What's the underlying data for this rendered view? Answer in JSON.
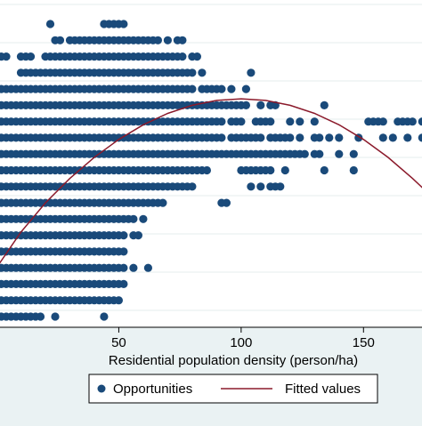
{
  "chart_data": {
    "type": "scatter",
    "title": "",
    "xlabel": "Residential population density (person/ha)",
    "ylabel": "",
    "xlim": [
      0,
      175
    ],
    "x_ticks": [
      50,
      100,
      150
    ],
    "grid": true,
    "legend_position": "bottom",
    "colors": {
      "background": "#eaf2f3",
      "plot_background": "#ffffff",
      "points": "#1a4a7a",
      "fitted_line": "#8b1a2b",
      "grid": "#e6ecee",
      "axis": "#000000"
    },
    "series": [
      {
        "name": "Opportunities",
        "kind": "points",
        "rows": [
          {
            "y": 18,
            "x": [
              22,
              44,
              46,
              48,
              50,
              52
            ]
          },
          {
            "y": 17,
            "x": [
              24,
              26,
              30,
              32,
              34,
              36,
              38,
              40,
              42,
              44,
              46,
              48,
              50,
              52,
              54,
              56,
              58,
              60,
              62,
              64,
              66,
              70,
              74,
              76
            ]
          },
          {
            "y": 16,
            "x": [
              2,
              4,
              10,
              12,
              14,
              20,
              22,
              24,
              26,
              28,
              30,
              32,
              34,
              36,
              38,
              40,
              42,
              44,
              46,
              48,
              50,
              52,
              54,
              56,
              58,
              60,
              62,
              64,
              66,
              68,
              70,
              72,
              74,
              76,
              80,
              82
            ]
          },
          {
            "y": 15,
            "x": [
              10,
              12,
              14,
              16,
              18,
              20,
              22,
              24,
              26,
              28,
              30,
              32,
              34,
              36,
              38,
              40,
              42,
              44,
              46,
              48,
              50,
              52,
              54,
              56,
              58,
              60,
              62,
              64,
              66,
              68,
              70,
              72,
              74,
              76,
              78,
              80,
              84,
              104
            ]
          },
          {
            "y": 14,
            "x": [
              2,
              4,
              6,
              8,
              10,
              12,
              14,
              16,
              18,
              20,
              22,
              24,
              26,
              28,
              30,
              32,
              34,
              36,
              38,
              40,
              42,
              44,
              46,
              48,
              50,
              52,
              54,
              56,
              58,
              60,
              62,
              64,
              66,
              68,
              70,
              72,
              74,
              76,
              78,
              80,
              84,
              86,
              88,
              90,
              92,
              96,
              102
            ]
          },
          {
            "y": 13,
            "x": [
              2,
              4,
              6,
              8,
              10,
              12,
              14,
              16,
              18,
              20,
              22,
              24,
              26,
              28,
              30,
              32,
              34,
              36,
              38,
              40,
              42,
              44,
              46,
              48,
              50,
              52,
              54,
              56,
              58,
              60,
              62,
              64,
              66,
              68,
              70,
              72,
              74,
              76,
              78,
              80,
              82,
              84,
              86,
              88,
              90,
              92,
              94,
              96,
              98,
              100,
              102,
              108,
              112,
              114,
              134
            ]
          },
          {
            "y": 12,
            "x": [
              2,
              4,
              6,
              8,
              10,
              12,
              14,
              16,
              18,
              20,
              22,
              24,
              26,
              28,
              30,
              32,
              34,
              36,
              38,
              40,
              42,
              44,
              46,
              48,
              50,
              52,
              54,
              56,
              58,
              60,
              62,
              64,
              66,
              68,
              70,
              72,
              74,
              76,
              78,
              80,
              82,
              84,
              86,
              88,
              90,
              92,
              96,
              98,
              100,
              106,
              108,
              110,
              112,
              120,
              124,
              130,
              152,
              154,
              156,
              158,
              164,
              166,
              168,
              170,
              174
            ]
          },
          {
            "y": 11,
            "x": [
              2,
              4,
              6,
              8,
              10,
              12,
              14,
              16,
              18,
              20,
              22,
              24,
              26,
              28,
              30,
              32,
              34,
              36,
              38,
              40,
              42,
              44,
              46,
              48,
              50,
              52,
              54,
              56,
              58,
              60,
              62,
              64,
              66,
              68,
              70,
              72,
              74,
              76,
              78,
              80,
              82,
              84,
              86,
              88,
              90,
              92,
              96,
              98,
              100,
              102,
              104,
              106,
              108,
              112,
              114,
              116,
              118,
              120,
              124,
              130,
              132,
              136,
              140,
              148,
              158,
              162,
              168,
              174
            ]
          },
          {
            "y": 10,
            "x": [
              2,
              4,
              6,
              8,
              10,
              12,
              14,
              16,
              18,
              20,
              22,
              24,
              26,
              28,
              30,
              32,
              34,
              36,
              38,
              40,
              42,
              44,
              46,
              48,
              50,
              52,
              54,
              56,
              58,
              60,
              62,
              64,
              66,
              68,
              70,
              72,
              74,
              76,
              78,
              80,
              82,
              84,
              86,
              88,
              90,
              92,
              94,
              96,
              98,
              100,
              102,
              104,
              106,
              108,
              110,
              112,
              114,
              116,
              118,
              120,
              122,
              124,
              126,
              130,
              132,
              140,
              146
            ]
          },
          {
            "y": 9,
            "x": [
              2,
              4,
              6,
              8,
              10,
              12,
              14,
              16,
              18,
              20,
              22,
              24,
              26,
              28,
              30,
              32,
              34,
              36,
              38,
              40,
              42,
              44,
              46,
              48,
              50,
              52,
              54,
              56,
              58,
              60,
              62,
              64,
              66,
              68,
              70,
              72,
              74,
              76,
              78,
              80,
              82,
              84,
              86,
              100,
              102,
              104,
              106,
              108,
              110,
              112,
              118,
              134,
              146
            ]
          },
          {
            "y": 8,
            "x": [
              2,
              4,
              6,
              8,
              10,
              12,
              14,
              16,
              18,
              20,
              22,
              24,
              26,
              28,
              30,
              32,
              34,
              36,
              38,
              40,
              42,
              44,
              46,
              48,
              50,
              52,
              54,
              56,
              58,
              60,
              62,
              64,
              66,
              68,
              70,
              72,
              74,
              76,
              78,
              80,
              104,
              108,
              112,
              114,
              116
            ]
          },
          {
            "y": 7,
            "x": [
              2,
              4,
              6,
              8,
              10,
              12,
              14,
              16,
              18,
              20,
              22,
              24,
              26,
              28,
              30,
              32,
              34,
              36,
              38,
              40,
              42,
              44,
              46,
              48,
              50,
              52,
              54,
              56,
              58,
              60,
              62,
              64,
              66,
              68,
              92,
              94
            ]
          },
          {
            "y": 6,
            "x": [
              2,
              4,
              6,
              8,
              10,
              12,
              14,
              16,
              18,
              20,
              22,
              24,
              26,
              28,
              30,
              32,
              34,
              36,
              38,
              40,
              42,
              44,
              46,
              48,
              50,
              52,
              54,
              56,
              60
            ]
          },
          {
            "y": 5,
            "x": [
              2,
              4,
              6,
              8,
              10,
              12,
              14,
              16,
              18,
              20,
              22,
              24,
              26,
              28,
              30,
              32,
              34,
              36,
              38,
              40,
              42,
              44,
              46,
              48,
              50,
              52,
              56,
              58
            ]
          },
          {
            "y": 4,
            "x": [
              2,
              4,
              6,
              8,
              10,
              12,
              14,
              16,
              18,
              20,
              22,
              24,
              26,
              28,
              30,
              32,
              34,
              36,
              38,
              40,
              42,
              44,
              46,
              48,
              50,
              52
            ]
          },
          {
            "y": 3,
            "x": [
              2,
              4,
              6,
              8,
              10,
              12,
              14,
              16,
              18,
              20,
              22,
              24,
              26,
              28,
              30,
              32,
              34,
              36,
              38,
              40,
              42,
              44,
              46,
              48,
              50,
              52,
              56,
              62
            ]
          },
          {
            "y": 2,
            "x": [
              2,
              4,
              6,
              8,
              10,
              12,
              14,
              16,
              18,
              20,
              22,
              24,
              26,
              28,
              30,
              32,
              34,
              36,
              38,
              40,
              42,
              44,
              46,
              48,
              50,
              52
            ]
          },
          {
            "y": 1,
            "x": [
              2,
              4,
              6,
              8,
              10,
              12,
              14,
              16,
              18,
              20,
              22,
              24,
              26,
              28,
              30,
              32,
              34,
              36,
              38,
              40,
              42,
              44,
              46,
              48,
              50
            ]
          },
          {
            "y": 0,
            "x": [
              2,
              4,
              6,
              8,
              10,
              12,
              14,
              16,
              18,
              24,
              44
            ]
          }
        ]
      },
      {
        "name": "Fitted values",
        "kind": "line",
        "x": [
          0,
          10,
          20,
          30,
          40,
          50,
          60,
          70,
          80,
          90,
          100,
          110,
          120,
          130,
          140,
          150,
          160,
          170,
          175
        ],
        "y": [
          3.0,
          5.2,
          7.0,
          8.5,
          9.8,
          10.9,
          11.8,
          12.5,
          13.0,
          13.3,
          13.4,
          13.3,
          13.0,
          12.5,
          11.8,
          10.9,
          9.8,
          8.5,
          7.8
        ]
      }
    ],
    "legend": [
      "Opportunities",
      "Fitted values"
    ]
  }
}
